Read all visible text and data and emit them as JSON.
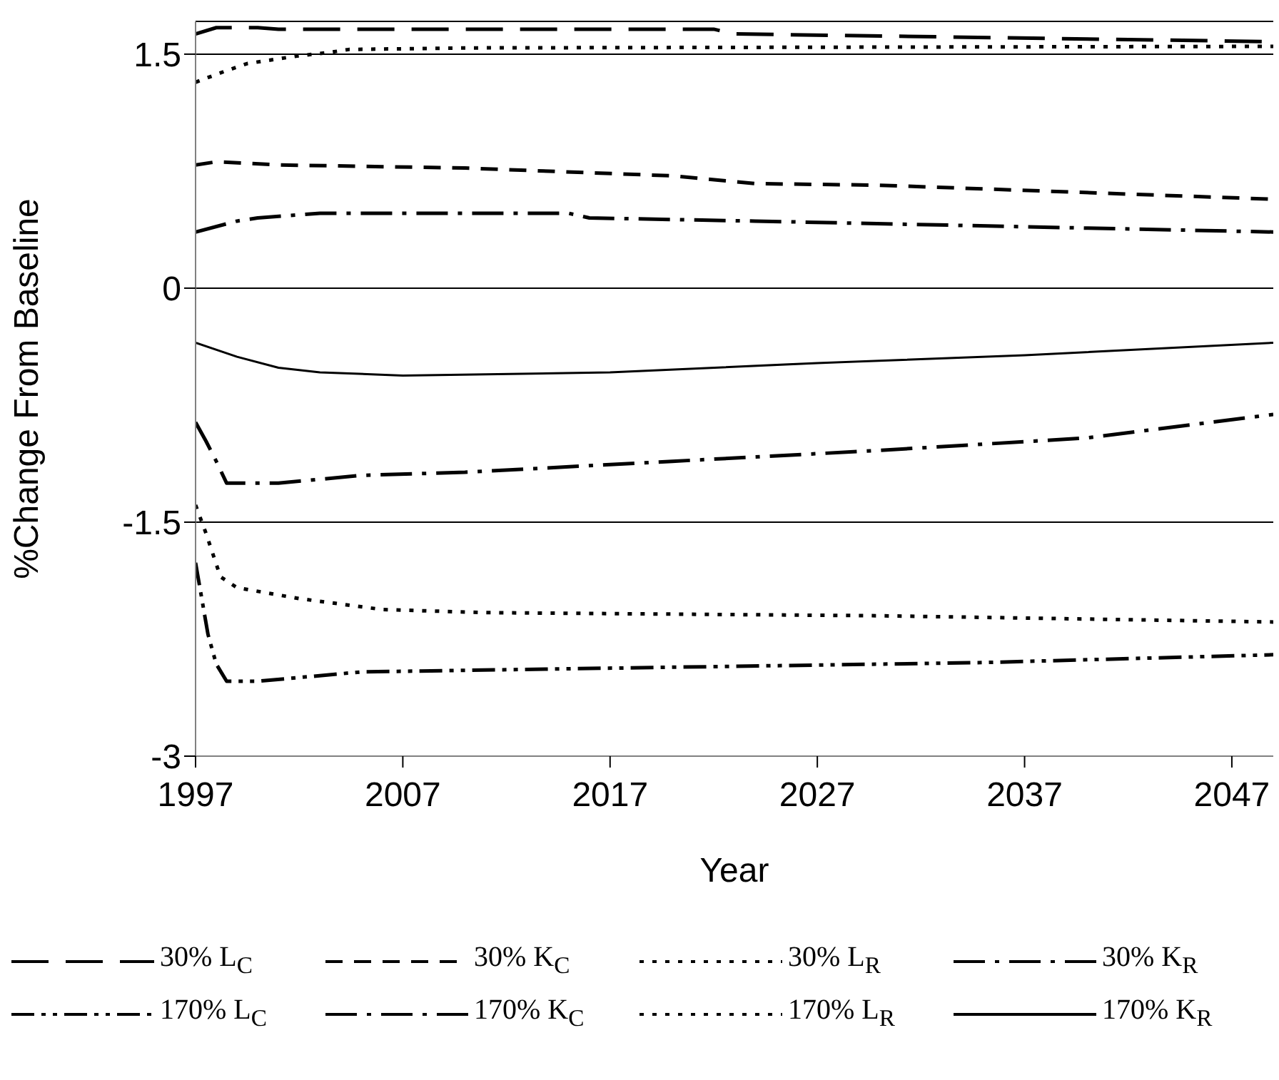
{
  "chart_data": {
    "type": "line",
    "xlabel": "Year",
    "ylabel": "%Change From Baseline",
    "xlim": [
      1997,
      2049
    ],
    "xticks": [
      1997,
      2007,
      2017,
      2027,
      2037,
      2047
    ],
    "ylim": [
      -3,
      1.71
    ],
    "yticks": [
      -3,
      -1.5,
      0,
      1.5
    ],
    "grid": "y",
    "legend": "bottom",
    "marker": "none",
    "series": [
      {
        "name": "30% L$_{C}$",
        "color": "#000000",
        "line_style": "longdash",
        "x": [
          1997,
          1998,
          2000,
          2001,
          2022,
          2023,
          2049
        ],
        "values": [
          1.63,
          1.67,
          1.67,
          1.66,
          1.66,
          1.63,
          1.58
        ]
      },
      {
        "name": "30% K$_{C}$",
        "color": "#000000",
        "line_style": "dashed",
        "x": [
          1997,
          1998,
          2001,
          2010,
          2020,
          2024,
          2030,
          2049
        ],
        "values": [
          0.79,
          0.81,
          0.79,
          0.77,
          0.72,
          0.67,
          0.66,
          0.57
        ]
      },
      {
        "name": "30% L$_{R}$",
        "color": "#000000",
        "line_style": "dotted",
        "x": [
          1997,
          1998.4,
          1999.5,
          2002,
          2003.4,
          2004.4,
          2010,
          2049
        ],
        "values": [
          1.32,
          1.39,
          1.44,
          1.49,
          1.51,
          1.53,
          1.54,
          1.55
        ]
      },
      {
        "name": "30% K$_{R}$",
        "color": "#000000",
        "line_style": "dashdot",
        "x": [
          1997,
          1999,
          2000,
          2003,
          2015,
          2016,
          2024,
          2049
        ],
        "values": [
          0.36,
          0.43,
          0.45,
          0.48,
          0.48,
          0.45,
          0.43,
          0.36
        ]
      },
      {
        "name": "170% L$_{C}$",
        "color": "#000000",
        "line_style": "dashdotdot",
        "x": [
          1997,
          1997.6,
          1998,
          1998.5,
          2000,
          2005,
          2015,
          2025,
          2035,
          2049
        ],
        "values": [
          -1.76,
          -2.22,
          -2.41,
          -2.52,
          -2.52,
          -2.46,
          -2.44,
          -2.42,
          -2.4,
          -2.35
        ]
      },
      {
        "name": "170% K$_{C}$",
        "color": "#000000",
        "line_style": "dashdot",
        "x": [
          1997,
          1997.5,
          1998,
          1998.5,
          2001,
          2005,
          2010,
          2020,
          2030,
          2040,
          2049
        ],
        "values": [
          -0.86,
          -0.98,
          -1.11,
          -1.25,
          -1.25,
          -1.2,
          -1.18,
          -1.11,
          -1.04,
          -0.96,
          -0.81
        ]
      },
      {
        "name": "170% L$_{R}$",
        "color": "#000000",
        "line_style": "dotted",
        "x": [
          1997,
          1997.5,
          1998.2,
          1999,
          2002,
          2006,
          2011,
          2030,
          2049
        ],
        "values": [
          -1.39,
          -1.57,
          -1.85,
          -1.92,
          -1.99,
          -2.06,
          -2.08,
          -2.1,
          -2.14
        ]
      },
      {
        "name": "170% K$_{R}$",
        "color": "#000000",
        "line_style": "solid",
        "x": [
          1997,
          1999,
          2001,
          2003,
          2007,
          2017,
          2027,
          2037,
          2049
        ],
        "values": [
          -0.35,
          -0.44,
          -0.51,
          -0.54,
          -0.56,
          -0.54,
          -0.48,
          -0.43,
          -0.35
        ]
      }
    ]
  }
}
